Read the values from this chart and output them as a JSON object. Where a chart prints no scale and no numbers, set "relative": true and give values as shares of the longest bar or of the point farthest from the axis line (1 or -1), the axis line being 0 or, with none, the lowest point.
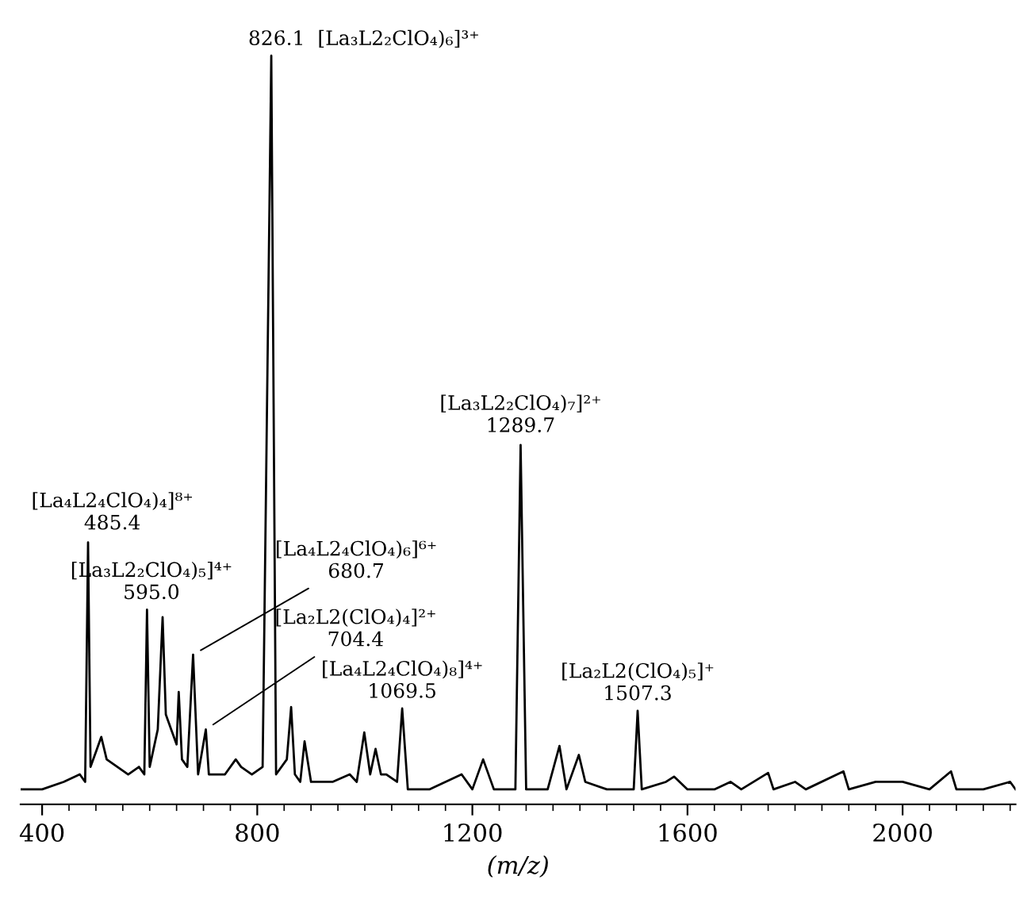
{
  "chart_data": {
    "type": "line",
    "relative": true,
    "xlabel": "(m/z)",
    "xlim": [
      360,
      2210
    ],
    "xticks": [
      400,
      {
        "value": 450,
        "label": null
      },
      {
        "value": 500,
        "label": null
      },
      {
        "value": 550,
        "label": null
      },
      {
        "value": 600,
        "label": null
      },
      {
        "value": 650,
        "label": null
      },
      {
        "value": 700,
        "label": null
      },
      {
        "value": 750,
        "label": null
      },
      800,
      {
        "value": 850,
        "label": null
      },
      {
        "value": 900,
        "label": null
      },
      {
        "value": 950,
        "label": null
      },
      {
        "value": 1000,
        "label": null
      },
      {
        "value": 1050,
        "label": null
      },
      {
        "value": 1100,
        "label": null
      },
      {
        "value": 1150,
        "label": null
      },
      1200,
      {
        "value": 1250,
        "label": null
      },
      {
        "value": 1300,
        "label": null
      },
      {
        "value": 1350,
        "label": null
      },
      {
        "value": 1400,
        "label": null
      },
      {
        "value": 1450,
        "label": null
      },
      {
        "value": 1500,
        "label": null
      },
      {
        "value": 1550,
        "label": null
      },
      1600,
      {
        "value": 1650,
        "label": null
      },
      {
        "value": 1700,
        "label": null
      },
      {
        "value": 1750,
        "label": null
      },
      {
        "value": 1800,
        "label": null
      },
      {
        "value": 1850,
        "label": null
      },
      {
        "value": 1900,
        "label": null
      },
      {
        "value": 1950,
        "label": null
      },
      2000,
      {
        "value": 2050,
        "label": null
      },
      {
        "value": 2100,
        "label": null
      },
      {
        "value": 2150,
        "label": null
      },
      {
        "value": 2200,
        "label": null
      }
    ],
    "grid": false,
    "legend": false,
    "marker": "none",
    "line_style": "solid",
    "series": [
      {
        "color": "#000000",
        "x": [
          360,
          400,
          440,
          470,
          480,
          485.4,
          490,
          500,
          510,
          520,
          540,
          560,
          580,
          590,
          595.0,
          600,
          615,
          624,
          630,
          640,
          650,
          654,
          660,
          670,
          680.7,
          690,
          704.4,
          710,
          740,
          760,
          770,
          790,
          810,
          826.1,
          835,
          855,
          863,
          870,
          880,
          888,
          900,
          940,
          972,
          985,
          999,
          1010,
          1020,
          1030,
          1040,
          1060,
          1069.5,
          1080,
          1120,
          1180,
          1200,
          1220,
          1240,
          1280,
          1289.7,
          1300,
          1340,
          1362,
          1375,
          1398,
          1410,
          1450,
          1500,
          1507.3,
          1515,
          1560,
          1575,
          1600,
          1650,
          1680,
          1700,
          1750,
          1760,
          1800,
          1820,
          1890,
          1900,
          1950,
          2000,
          2050,
          2090,
          2100,
          2150,
          2200,
          2210
        ],
        "values": [
          0.02,
          0.02,
          0.03,
          0.04,
          0.03,
          0.35,
          0.05,
          0.07,
          0.09,
          0.06,
          0.05,
          0.04,
          0.05,
          0.04,
          0.26,
          0.05,
          0.1,
          0.25,
          0.12,
          0.1,
          0.08,
          0.15,
          0.06,
          0.05,
          0.2,
          0.04,
          0.1,
          0.04,
          0.04,
          0.06,
          0.05,
          0.04,
          0.05,
          1.0,
          0.04,
          0.06,
          0.13,
          0.04,
          0.03,
          0.084,
          0.03,
          0.03,
          0.04,
          0.03,
          0.096,
          0.04,
          0.074,
          0.04,
          0.04,
          0.03,
          0.128,
          0.02,
          0.02,
          0.04,
          0.02,
          0.06,
          0.02,
          0.02,
          0.48,
          0.02,
          0.02,
          0.078,
          0.02,
          0.066,
          0.03,
          0.02,
          0.02,
          0.125,
          0.02,
          0.03,
          0.037,
          0.02,
          0.02,
          0.03,
          0.02,
          0.042,
          0.02,
          0.03,
          0.02,
          0.044,
          0.02,
          0.03,
          0.03,
          0.02,
          0.044,
          0.02,
          0.02,
          0.03,
          0.02
        ]
      }
    ],
    "annotations": [
      {
        "text": "[La₄L2₄ClO₄)₄]⁸⁺\n485.4",
        "x": 485.4,
        "y": 0.35
      },
      {
        "text": "[La₃L2₂ClO₄)₅]⁴⁺\n595.0",
        "x": 595.0,
        "y": 0.26
      },
      {
        "text": "[La₄L2₄ClO₄)₆]⁶⁺\n680.7",
        "x": 680.7,
        "y": 0.2
      },
      {
        "text": "[La₂L2(ClO₄)₄]²⁺\n704.4",
        "x": 704.4,
        "y": 0.1
      },
      {
        "text": "826.1  [La₃L2₂ClO₄)₆]³⁺",
        "x": 826.1,
        "y": 1.0
      },
      {
        "text": "[La₄L2₄ClO₄)₈]⁴⁺\n1069.5",
        "x": 1069.5,
        "y": 0.128
      },
      {
        "text": "[La₃L2₂ClO₄)₇]²⁺\n1289.7",
        "x": 1289.7,
        "y": 0.48
      },
      {
        "text": "[La₂L2(ClO₄)₅]⁺\n1507.3",
        "x": 1507.3,
        "y": 0.125
      }
    ]
  }
}
